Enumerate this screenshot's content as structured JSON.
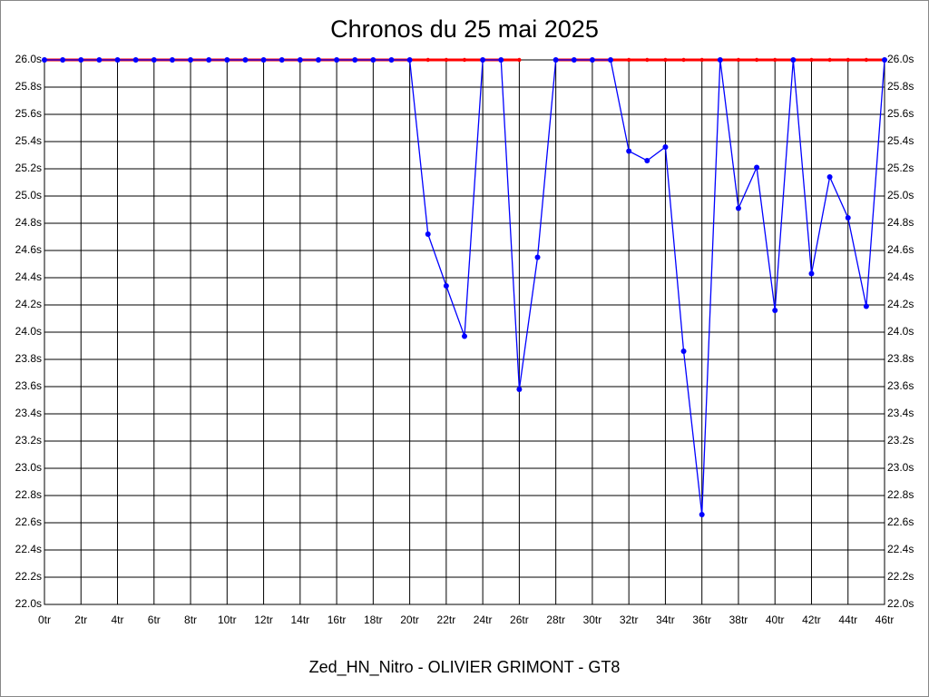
{
  "chart_data": {
    "type": "line",
    "title": "Chronos du 25 mai 2025",
    "subtitle": "Zed_HN_Nitro - OLIVIER GRIMONT - GT8",
    "x": [
      0,
      1,
      2,
      3,
      4,
      5,
      6,
      7,
      8,
      9,
      10,
      11,
      12,
      13,
      14,
      15,
      16,
      17,
      18,
      19,
      20,
      21,
      22,
      23,
      24,
      25,
      26,
      27,
      28,
      29,
      30,
      31,
      32,
      33,
      34,
      35,
      36,
      37,
      38,
      39,
      40,
      41,
      42,
      43,
      44,
      45,
      46
    ],
    "xlim": [
      0,
      46
    ],
    "xticks": [
      {
        "value": 0,
        "label": "0tr"
      },
      {
        "value": 2,
        "label": "2tr"
      },
      {
        "value": 4,
        "label": "4tr"
      },
      {
        "value": 6,
        "label": "6tr"
      },
      {
        "value": 8,
        "label": "8tr"
      },
      {
        "value": 10,
        "label": "10tr"
      },
      {
        "value": 12,
        "label": "12tr"
      },
      {
        "value": 14,
        "label": "14tr"
      },
      {
        "value": 16,
        "label": "16tr"
      },
      {
        "value": 18,
        "label": "18tr"
      },
      {
        "value": 20,
        "label": "20tr"
      },
      {
        "value": 22,
        "label": "22tr"
      },
      {
        "value": 24,
        "label": "24tr"
      },
      {
        "value": 26,
        "label": "26tr"
      },
      {
        "value": 28,
        "label": "28tr"
      },
      {
        "value": 30,
        "label": "30tr"
      },
      {
        "value": 32,
        "label": "32tr"
      },
      {
        "value": 34,
        "label": "34tr"
      },
      {
        "value": 36,
        "label": "36tr"
      },
      {
        "value": 38,
        "label": "38tr"
      },
      {
        "value": 40,
        "label": "40tr"
      },
      {
        "value": 42,
        "label": "42tr"
      },
      {
        "value": 44,
        "label": "44tr"
      },
      {
        "value": 46,
        "label": "46tr"
      }
    ],
    "ylim": [
      22,
      26
    ],
    "yticks": [
      {
        "value": 22,
        "label": "22.0s"
      },
      {
        "value": 22.2,
        "label": "22.2s"
      },
      {
        "value": 22.4,
        "label": "22.4s"
      },
      {
        "value": 22.6,
        "label": "22.6s"
      },
      {
        "value": 22.8,
        "label": "22.8s"
      },
      {
        "value": 23,
        "label": "23.0s"
      },
      {
        "value": 23.2,
        "label": "23.2s"
      },
      {
        "value": 23.4,
        "label": "23.4s"
      },
      {
        "value": 23.6,
        "label": "23.6s"
      },
      {
        "value": 23.8,
        "label": "23.8s"
      },
      {
        "value": 24,
        "label": "24.0s"
      },
      {
        "value": 24.2,
        "label": "24.2s"
      },
      {
        "value": 24.4,
        "label": "24.4s"
      },
      {
        "value": 24.6,
        "label": "24.6s"
      },
      {
        "value": 24.8,
        "label": "24.8s"
      },
      {
        "value": 25,
        "label": "25.0s"
      },
      {
        "value": 25.2,
        "label": "25.2s"
      },
      {
        "value": 25.4,
        "label": "25.4s"
      },
      {
        "value": 25.6,
        "label": "25.6s"
      },
      {
        "value": 25.8,
        "label": "25.8s"
      },
      {
        "value": 26,
        "label": "26.0s"
      }
    ],
    "grid": true,
    "series": [
      {
        "color": "#ff0000",
        "values": [
          26,
          26,
          26,
          26,
          26,
          26,
          26,
          26,
          26,
          26,
          26,
          26,
          26,
          26,
          26,
          26,
          26,
          26,
          26,
          26,
          26,
          26,
          26,
          26,
          26,
          26,
          26,
          null,
          26,
          26,
          26,
          26,
          26,
          26,
          26,
          26,
          26,
          26,
          26,
          26,
          26,
          26,
          26,
          26,
          26,
          26,
          26
        ]
      },
      {
        "color": "#0000ff",
        "values": [
          26,
          26,
          26,
          26,
          26,
          26,
          26,
          26,
          26,
          26,
          26,
          26,
          26,
          26,
          26,
          26,
          26,
          26,
          26,
          26,
          26,
          24.72,
          24.34,
          23.97,
          26,
          26,
          23.58,
          24.55,
          26,
          26,
          26,
          26,
          25.33,
          25.26,
          25.36,
          23.86,
          22.66,
          26,
          24.91,
          25.21,
          24.16,
          26,
          24.43,
          25.14,
          24.84,
          24.19,
          26
        ]
      }
    ]
  }
}
